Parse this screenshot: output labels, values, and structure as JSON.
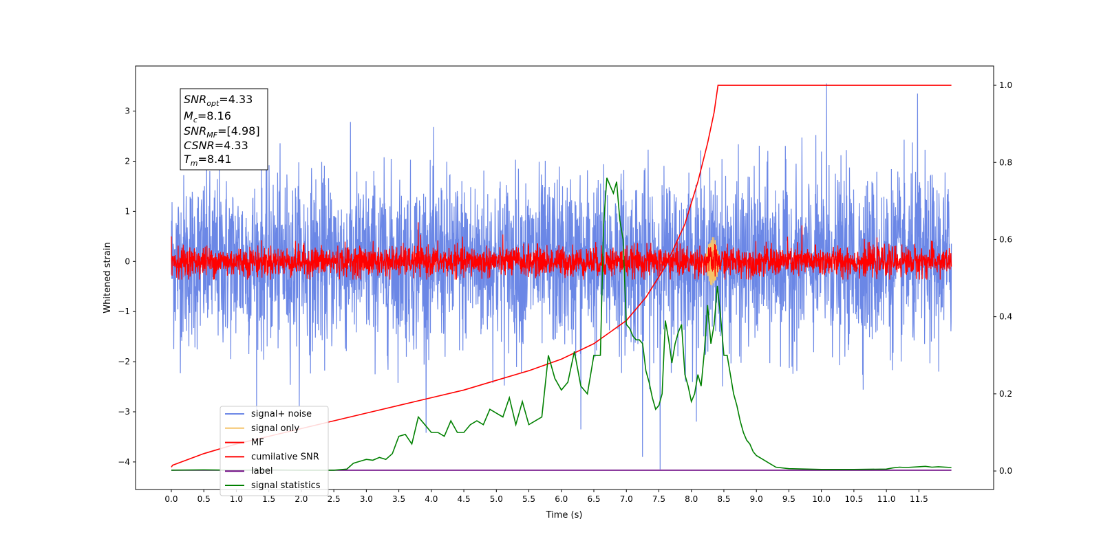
{
  "chart_data": {
    "type": "line",
    "xlabel": "Time (s)",
    "ylabel": "Whitened strain",
    "xlim": [
      -0.55,
      12.65
    ],
    "ylim": [
      -4.55,
      3.9
    ],
    "y2lim": [
      -0.048,
      1.05
    ],
    "x_ticks": [
      "0.0",
      "0.5",
      "1.0",
      "1.5",
      "2.0",
      "2.5",
      "3.0",
      "3.5",
      "4.0",
      "4.5",
      "5.0",
      "5.5",
      "6.0",
      "6.5",
      "7.0",
      "7.5",
      "8.0",
      "8.5",
      "9.0",
      "9.5",
      "10.0",
      "10.5",
      "11.0",
      "11.5"
    ],
    "y_ticks": [
      "−4",
      "−3",
      "−2",
      "−1",
      "0",
      "1",
      "2",
      "3"
    ],
    "y2_ticks": [
      "0.0",
      "0.2",
      "0.4",
      "0.6",
      "0.8",
      "1.0"
    ],
    "annotation": {
      "snr_opt": {
        "main": "SNR",
        "sub": "opt",
        "rest": "=4.33"
      },
      "mc": {
        "main": "M",
        "sub": "c",
        "rest": "=8.16"
      },
      "snr_mf": {
        "main": "SNR",
        "sub": "MF",
        "rest": "=[4.98]"
      },
      "csnr": {
        "main": "CSNR",
        "rest": "=4.33"
      },
      "tm": {
        "main": "T",
        "sub": "m",
        "rest": "=8.41"
      }
    },
    "legend": [
      {
        "label": "signal+ noise",
        "color": "#6b87e6"
      },
      {
        "label": "signal only",
        "color": "#f5c46a"
      },
      {
        "label": "MF",
        "color": "#ff0000"
      },
      {
        "label": "cumilative SNR",
        "color": "#ff0000"
      },
      {
        "label": "label",
        "color": "#6a0080"
      },
      {
        "label": "signal statistics",
        "color": "#008000"
      }
    ],
    "legend_position": "lower-left",
    "series": [
      {
        "name": "signal+ noise",
        "axis": "left",
        "color": "#6b87e6",
        "x_range": [
          0.0,
          12.0
        ],
        "mean": 0.0,
        "std": 0.85,
        "min": -4.15,
        "max": 3.55
      },
      {
        "name": "signal only",
        "axis": "left",
        "color": "#f5c46a",
        "x_range": [
          8.2,
          8.45
        ],
        "peak": 0.5
      },
      {
        "name": "MF",
        "axis": "left",
        "color": "#ff0000",
        "x_range": [
          0.0,
          12.0
        ],
        "mean": 0.0,
        "std": 0.15,
        "max": 0.78
      },
      {
        "name": "cumilative SNR",
        "axis": "right",
        "color": "#ff0000",
        "x": [
          0.0,
          0.02,
          0.5,
          1.0,
          1.5,
          2.0,
          2.5,
          3.0,
          3.5,
          4.0,
          4.5,
          5.0,
          5.5,
          6.0,
          6.5,
          7.0,
          7.3,
          7.6,
          7.9,
          8.1,
          8.25,
          8.35,
          8.41,
          9.0,
          10.0,
          11.0,
          12.0
        ],
        "y": [
          0.01,
          0.015,
          0.045,
          0.07,
          0.09,
          0.11,
          0.13,
          0.15,
          0.17,
          0.19,
          0.21,
          0.235,
          0.26,
          0.29,
          0.33,
          0.39,
          0.45,
          0.53,
          0.64,
          0.75,
          0.85,
          0.93,
          1.0,
          1.0,
          1.0,
          1.0,
          1.0
        ]
      },
      {
        "name": "label",
        "axis": "right",
        "color": "#6a0080",
        "x": [
          0.0,
          12.0
        ],
        "y": [
          0.002,
          0.002
        ]
      },
      {
        "name": "signal statistics",
        "axis": "right",
        "color": "#008000",
        "x": [
          0.0,
          0.5,
          1.0,
          1.5,
          2.0,
          2.5,
          2.7,
          2.8,
          2.9,
          3.0,
          3.1,
          3.2,
          3.3,
          3.4,
          3.5,
          3.6,
          3.7,
          3.8,
          3.9,
          4.0,
          4.1,
          4.2,
          4.3,
          4.4,
          4.5,
          4.6,
          4.7,
          4.8,
          4.9,
          5.0,
          5.1,
          5.2,
          5.3,
          5.4,
          5.5,
          5.6,
          5.7,
          5.8,
          5.9,
          6.0,
          6.1,
          6.2,
          6.3,
          6.4,
          6.5,
          6.6,
          6.65,
          6.7,
          6.75,
          6.8,
          6.85,
          6.9,
          6.95,
          7.0,
          7.05,
          7.1,
          7.15,
          7.2,
          7.25,
          7.3,
          7.35,
          7.4,
          7.45,
          7.5,
          7.55,
          7.6,
          7.65,
          7.7,
          7.75,
          7.8,
          7.85,
          7.9,
          7.95,
          8.0,
          8.05,
          8.1,
          8.15,
          8.2,
          8.25,
          8.3,
          8.35,
          8.4,
          8.45,
          8.5,
          8.55,
          8.6,
          8.65,
          8.7,
          8.75,
          8.8,
          8.85,
          8.9,
          8.95,
          9.0,
          9.1,
          9.2,
          9.3,
          9.5,
          10.0,
          10.5,
          11.0,
          11.1,
          11.2,
          11.3,
          11.5,
          11.6,
          11.7,
          11.8,
          12.0
        ],
        "y": [
          0.002,
          0.003,
          0.002,
          0.003,
          0.002,
          0.002,
          0.005,
          0.02,
          0.025,
          0.03,
          0.028,
          0.035,
          0.03,
          0.045,
          0.09,
          0.095,
          0.07,
          0.14,
          0.12,
          0.1,
          0.1,
          0.09,
          0.13,
          0.1,
          0.1,
          0.12,
          0.13,
          0.12,
          0.16,
          0.15,
          0.14,
          0.19,
          0.12,
          0.18,
          0.12,
          0.13,
          0.14,
          0.3,
          0.24,
          0.21,
          0.23,
          0.31,
          0.22,
          0.2,
          0.3,
          0.3,
          0.64,
          0.76,
          0.74,
          0.72,
          0.75,
          0.65,
          0.6,
          0.38,
          0.37,
          0.35,
          0.34,
          0.34,
          0.33,
          0.26,
          0.23,
          0.19,
          0.16,
          0.17,
          0.2,
          0.39,
          0.34,
          0.28,
          0.33,
          0.36,
          0.38,
          0.25,
          0.22,
          0.18,
          0.2,
          0.25,
          0.22,
          0.31,
          0.43,
          0.33,
          0.38,
          0.48,
          0.4,
          0.3,
          0.3,
          0.25,
          0.2,
          0.17,
          0.13,
          0.1,
          0.08,
          0.07,
          0.05,
          0.04,
          0.03,
          0.02,
          0.01,
          0.006,
          0.004,
          0.004,
          0.005,
          0.008,
          0.01,
          0.009,
          0.011,
          0.012,
          0.01,
          0.011,
          0.009
        ]
      }
    ]
  }
}
